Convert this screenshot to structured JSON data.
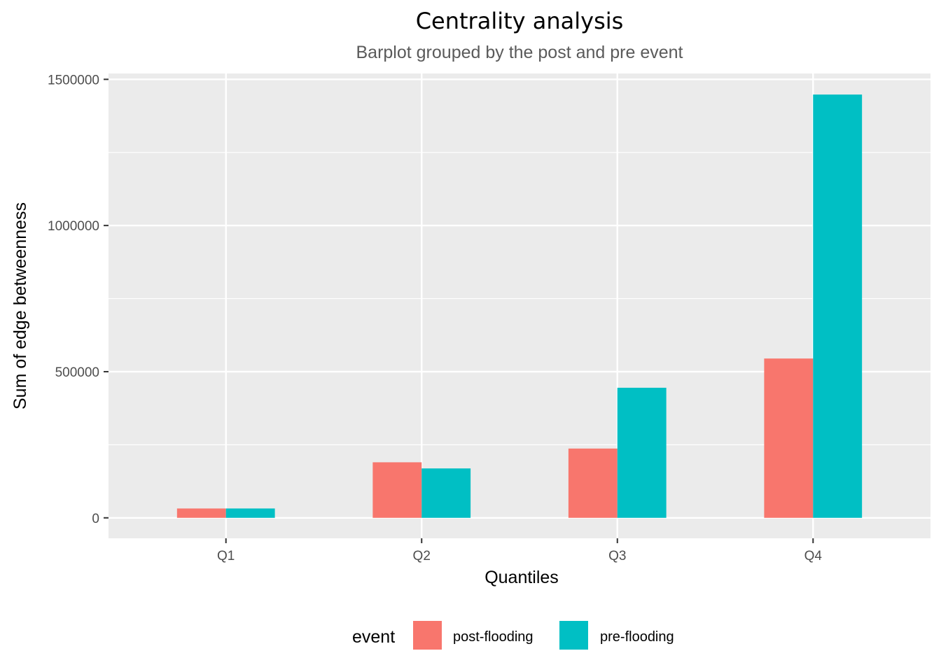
{
  "chart_data": {
    "type": "bar",
    "title": "Centrality analysis",
    "subtitle": "Barplot grouped by the post and pre event",
    "xlabel": "Quantiles",
    "ylabel": "Sum of edge betweenness",
    "categories": [
      "Q1",
      "Q2",
      "Q3",
      "Q4"
    ],
    "series": [
      {
        "name": "post-flooding",
        "color": "#F8766D",
        "values": [
          32000,
          190000,
          237000,
          545000
        ]
      },
      {
        "name": "pre-flooding",
        "color": "#00BFC4",
        "values": [
          32000,
          169000,
          445000,
          1448000
        ]
      }
    ],
    "ylim": [
      -70000,
      1520000
    ],
    "yticks": [
      0,
      500000,
      1000000,
      1500000
    ],
    "ytick_labels": [
      "0",
      "500000",
      "1000000",
      "1500000"
    ],
    "grid": true,
    "panel_background": "#EBEBEB",
    "legend": {
      "title": "event",
      "position": "bottom"
    }
  }
}
